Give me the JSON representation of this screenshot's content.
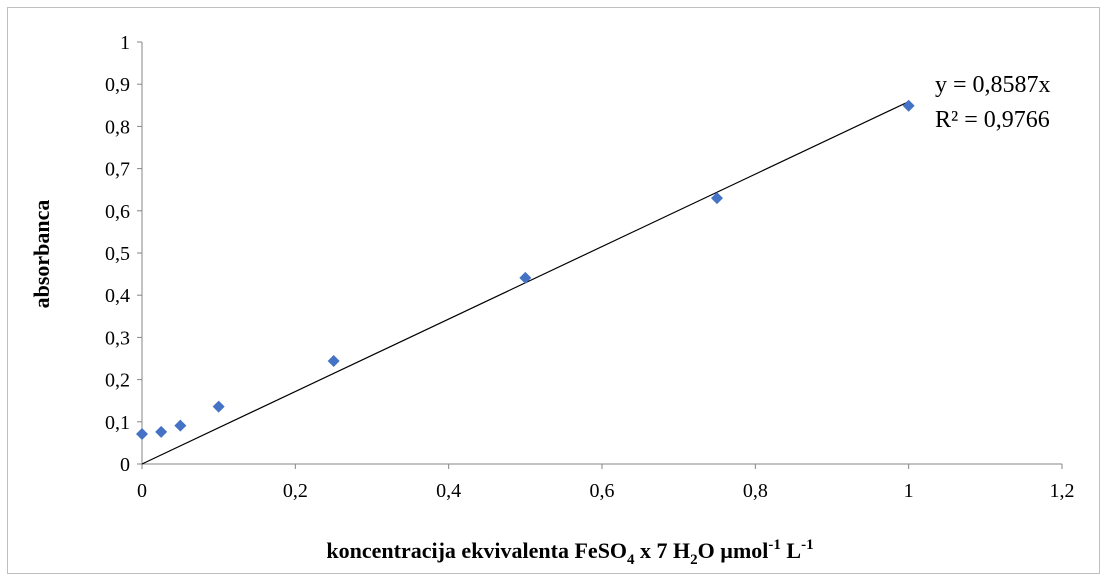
{
  "chart_data": {
    "type": "scatter",
    "title": "",
    "xlabel": {
      "prefix": "koncentracija ekvivalenta FeSO",
      "sub1": "4",
      "mid1": " x 7 H",
      "sub2": "2",
      "mid2": "O µmol",
      "sup1": "-1",
      "mid3": " L",
      "sup2": "-1"
    },
    "ylabel": "absorbanca",
    "xlim": [
      0,
      1.2
    ],
    "ylim": [
      0,
      1
    ],
    "x_ticks": [
      "0",
      "0,2",
      "0,4",
      "0,6",
      "0,8",
      "1",
      "1,2"
    ],
    "y_ticks": [
      "0",
      "0,1",
      "0,2",
      "0,3",
      "0,4",
      "0,5",
      "0,6",
      "0,7",
      "0,8",
      "0,9",
      "1"
    ],
    "marker_color": "#4472c4",
    "trendline_color": "#000000",
    "points": [
      {
        "x": 0,
        "y": 0.071
      },
      {
        "x": 0.025,
        "y": 0.076
      },
      {
        "x": 0.05,
        "y": 0.091
      },
      {
        "x": 0.1,
        "y": 0.136
      },
      {
        "x": 0.25,
        "y": 0.244
      },
      {
        "x": 0.5,
        "y": 0.441
      },
      {
        "x": 0.75,
        "y": 0.63
      },
      {
        "x": 1,
        "y": 0.849
      }
    ],
    "trendline": {
      "slope": 0.8587,
      "intercept": 0,
      "x_range": [
        0,
        1
      ]
    },
    "equation": "y = 0,8587x",
    "r_squared": "R² = 0,9766"
  }
}
